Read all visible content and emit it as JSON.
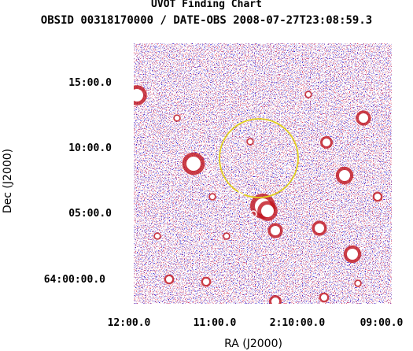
{
  "header": {
    "title": "UVOT Finding Chart",
    "subtitle": "OBSID 00318170000 / DATE-OBS 2008-07-27T23:08:59.3"
  },
  "chart_data": {
    "type": "image",
    "xlabel": "RA (J2000)",
    "ylabel": "Dec (J2000)",
    "xticks": [
      "12:00.0",
      "11:00.0",
      "2:10:00.0",
      "09:00.0"
    ],
    "yticks": [
      "15:00.0",
      "10:00.0",
      "05:00.0",
      "64:00:00.0"
    ],
    "colors": {
      "background": "#2b1ed6",
      "noise_red": "#c0141e",
      "noise_white": "#ffffff",
      "circle": "#e0d020",
      "source_marker": "#ffffff"
    }
  }
}
